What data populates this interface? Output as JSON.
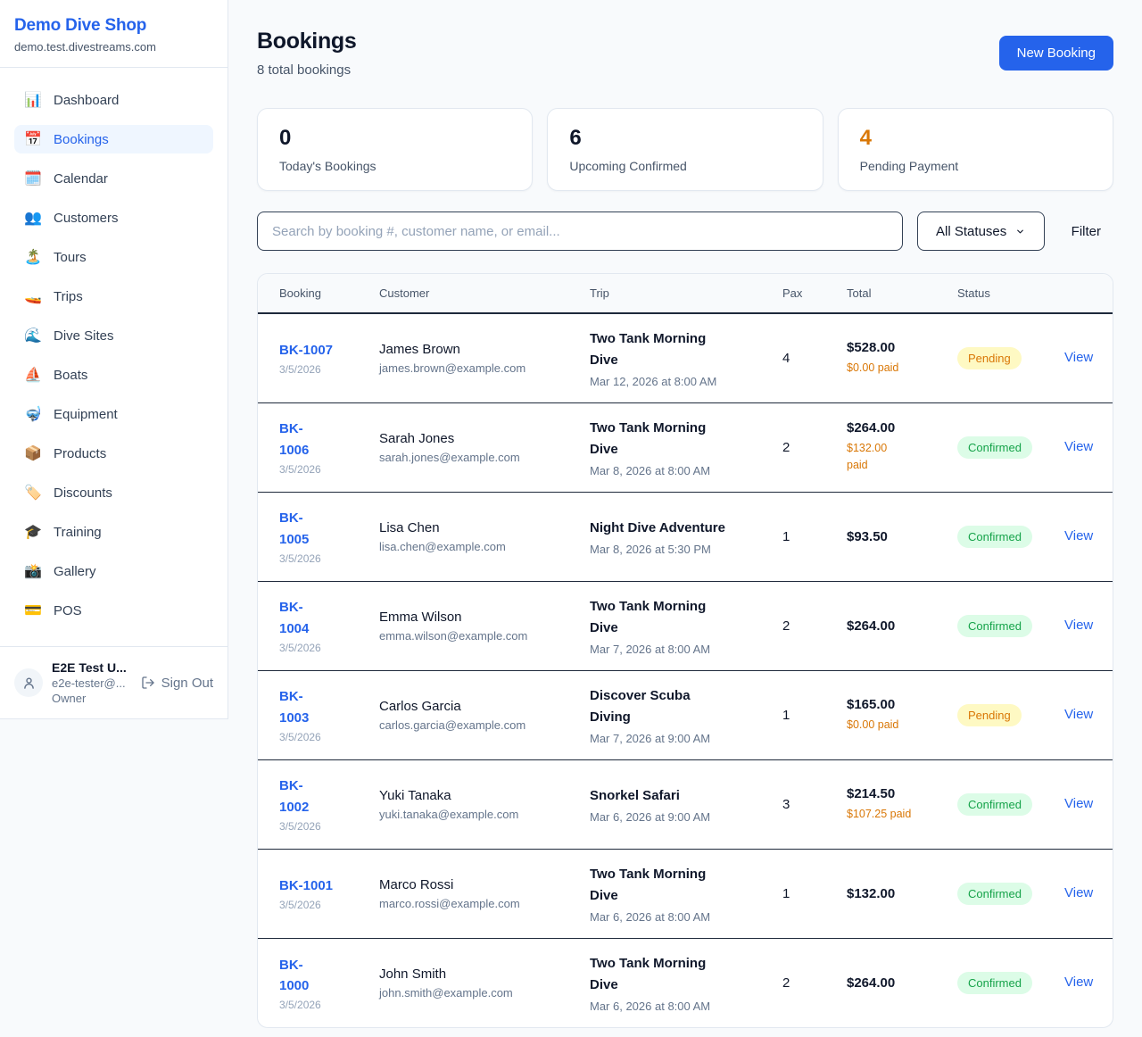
{
  "colors": {
    "accent": "#2563eb",
    "orange": "#d97706",
    "pending-bg": "#fef9c3",
    "pending-text": "#d97706",
    "confirmed-bg": "#dcfce7",
    "confirmed-text": "#16a34a",
    "border": "#e2e8f0",
    "dark-border": "#1e293b",
    "page-bg": "#f8fafc",
    "active-bg": "#eff6ff"
  },
  "brand": {
    "name": "Demo Dive Shop",
    "domain": "demo.test.divestreams.com"
  },
  "sidebar": {
    "items": [
      {
        "icon": "📊",
        "icon_name": "bar-chart-icon",
        "label": "Dashboard",
        "active": false
      },
      {
        "icon": "📅",
        "icon_name": "calendar-icon",
        "label": "Bookings",
        "active": true
      },
      {
        "icon": "🗓️",
        "icon_name": "spiral-calendar-icon",
        "label": "Calendar",
        "active": false
      },
      {
        "icon": "👥",
        "icon_name": "people-icon",
        "label": "Customers",
        "active": false
      },
      {
        "icon": "🏝️",
        "icon_name": "island-icon",
        "label": "Tours",
        "active": false
      },
      {
        "icon": "🚤",
        "icon_name": "speedboat-icon",
        "label": "Trips",
        "active": false
      },
      {
        "icon": "🌊",
        "icon_name": "wave-icon",
        "label": "Dive Sites",
        "active": false
      },
      {
        "icon": "⛵",
        "icon_name": "sailboat-icon",
        "label": "Boats",
        "active": false
      },
      {
        "icon": "🤿",
        "icon_name": "diving-mask-icon",
        "label": "Equipment",
        "active": false
      },
      {
        "icon": "📦",
        "icon_name": "package-icon",
        "label": "Products",
        "active": false
      },
      {
        "icon": "🏷️",
        "icon_name": "tag-icon",
        "label": "Discounts",
        "active": false
      },
      {
        "icon": "🎓",
        "icon_name": "graduation-cap-icon",
        "label": "Training",
        "active": false
      },
      {
        "icon": "📸",
        "icon_name": "camera-icon",
        "label": "Gallery",
        "active": false
      },
      {
        "icon": "💳",
        "icon_name": "credit-card-icon",
        "label": "POS",
        "active": false
      }
    ],
    "user": {
      "name": "E2E Test U...",
      "email": "e2e-tester@...",
      "role": "Owner",
      "sign_out": "Sign Out"
    }
  },
  "header": {
    "title": "Bookings",
    "subtitle": "8 total bookings",
    "new_booking": "New Booking"
  },
  "stats": [
    {
      "value": "0",
      "label": "Today's Bookings",
      "accent": false
    },
    {
      "value": "6",
      "label": "Upcoming Confirmed",
      "accent": false
    },
    {
      "value": "4",
      "label": "Pending Payment",
      "accent": true
    }
  ],
  "filters": {
    "search_placeholder": "Search by booking #, customer name, or email...",
    "status_select": "All Statuses",
    "filter_label": "Filter"
  },
  "table": {
    "columns": [
      "Booking",
      "Customer",
      "Trip",
      "Pax",
      "Total",
      "Status"
    ],
    "view_label": "View",
    "rows": [
      {
        "id_lines": [
          "BK-1007"
        ],
        "date": "3/5/2026",
        "customer": "James Brown",
        "email": "james.brown@example.com",
        "trip_lines": [
          "Two Tank Morning",
          "Dive"
        ],
        "trip_time": "Mar 12, 2026 at 8:00 AM",
        "pax": "4",
        "total": "$528.00",
        "paid_lines": [
          "$0.00 paid"
        ],
        "status": "Pending"
      },
      {
        "id_lines": [
          "BK-",
          "1006"
        ],
        "date": "3/5/2026",
        "customer": "Sarah Jones",
        "email": "sarah.jones@example.com",
        "trip_lines": [
          "Two Tank Morning",
          "Dive"
        ],
        "trip_time": "Mar 8, 2026 at 8:00 AM",
        "pax": "2",
        "total": "$264.00",
        "paid_lines": [
          "$132.00",
          "paid"
        ],
        "status": "Confirmed"
      },
      {
        "id_lines": [
          "BK-",
          "1005"
        ],
        "date": "3/5/2026",
        "customer": "Lisa Chen",
        "email": "lisa.chen@example.com",
        "trip_lines": [
          "Night Dive Adventure"
        ],
        "trip_time": "Mar 8, 2026 at 5:30 PM",
        "pax": "1",
        "total": "$93.50",
        "paid_lines": [],
        "status": "Confirmed"
      },
      {
        "id_lines": [
          "BK-",
          "1004"
        ],
        "date": "3/5/2026",
        "customer": "Emma Wilson",
        "email": "emma.wilson@example.com",
        "trip_lines": [
          "Two Tank Morning",
          "Dive"
        ],
        "trip_time": "Mar 7, 2026 at 8:00 AM",
        "pax": "2",
        "total": "$264.00",
        "paid_lines": [],
        "status": "Confirmed"
      },
      {
        "id_lines": [
          "BK-",
          "1003"
        ],
        "date": "3/5/2026",
        "customer": "Carlos Garcia",
        "email": "carlos.garcia@example.com",
        "trip_lines": [
          "Discover Scuba",
          "Diving"
        ],
        "trip_time": "Mar 7, 2026 at 9:00 AM",
        "pax": "1",
        "total": "$165.00",
        "paid_lines": [
          "$0.00 paid"
        ],
        "status": "Pending"
      },
      {
        "id_lines": [
          "BK-",
          "1002"
        ],
        "date": "3/5/2026",
        "customer": "Yuki Tanaka",
        "email": "yuki.tanaka@example.com",
        "trip_lines": [
          "Snorkel Safari"
        ],
        "trip_time": "Mar 6, 2026 at 9:00 AM",
        "pax": "3",
        "total": "$214.50",
        "paid_lines": [
          "$107.25 paid"
        ],
        "status": "Confirmed"
      },
      {
        "id_lines": [
          "BK-1001"
        ],
        "date": "3/5/2026",
        "customer": "Marco Rossi",
        "email": "marco.rossi@example.com",
        "trip_lines": [
          "Two Tank Morning",
          "Dive"
        ],
        "trip_time": "Mar 6, 2026 at 8:00 AM",
        "pax": "1",
        "total": "$132.00",
        "paid_lines": [],
        "status": "Confirmed"
      },
      {
        "id_lines": [
          "BK-",
          "1000"
        ],
        "date": "3/5/2026",
        "customer": "John Smith",
        "email": "john.smith@example.com",
        "trip_lines": [
          "Two Tank Morning",
          "Dive"
        ],
        "trip_time": "Mar 6, 2026 at 8:00 AM",
        "pax": "2",
        "total": "$264.00",
        "paid_lines": [],
        "status": "Confirmed"
      }
    ]
  }
}
